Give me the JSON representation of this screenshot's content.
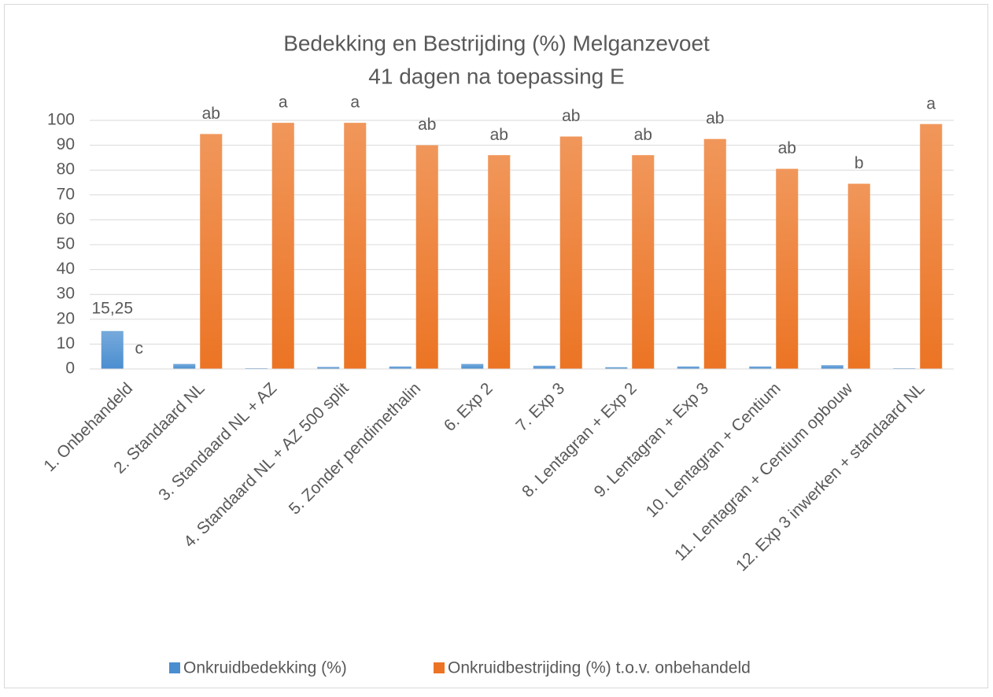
{
  "chart_data": {
    "type": "bar",
    "title": "Bedekking en Bestrijding (%) Melganzevoet",
    "subtitle": "41 dagen na toepassing E",
    "categories": [
      "1. Onbehandeld",
      "2. Standaard NL",
      "3. Standaard NL + AZ",
      "4. Standaard NL + AZ 500 split",
      "5. Zonder pendimethalin",
      "6. Exp 2",
      "7. Exp 3",
      "8. Lentagran + Exp 2",
      "9. Lentagran + Exp 3",
      "10. Lentagran + Centium",
      "11. Lentagran + Centium opbouw",
      "12. Exp 3 inwerken + standaard NL"
    ],
    "series": [
      {
        "name": "Onkruidbedekking (%)",
        "color": "#4a8ed0",
        "values": [
          15.25,
          2,
          0.3,
          0.8,
          1,
          2,
          1.3,
          0.7,
          1,
          1,
          1.5,
          0.3
        ],
        "value_labels": [
          "15,25",
          null,
          null,
          null,
          null,
          null,
          null,
          null,
          null,
          null,
          null,
          null
        ]
      },
      {
        "name": "Onkruidbestrijding (%) t.o.v. onbehandeld",
        "color": "#ec7424",
        "values": [
          0,
          94.5,
          99,
          99,
          90,
          86,
          93.5,
          86,
          92.5,
          80.5,
          74.5,
          98.5
        ],
        "annotations": [
          "c",
          "ab",
          "a",
          "a",
          "ab",
          "ab",
          "ab",
          "ab",
          "ab",
          "ab",
          "b",
          "a"
        ]
      }
    ],
    "ylim": [
      0,
      100
    ],
    "yticks": [
      0,
      10,
      20,
      30,
      40,
      50,
      60,
      70,
      80,
      90,
      100
    ],
    "grid": true,
    "legend": "bottom"
  }
}
